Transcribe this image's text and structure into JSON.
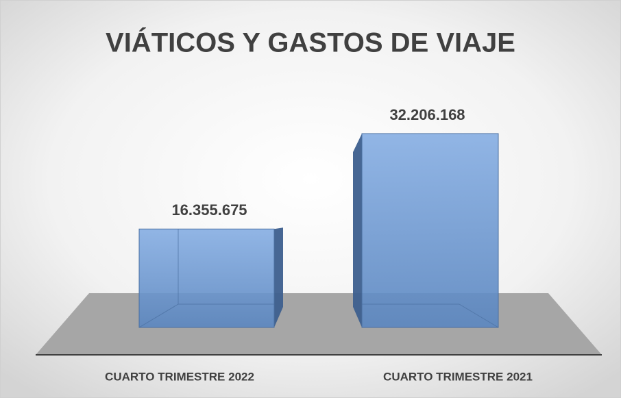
{
  "chart_data": {
    "type": "bar3d",
    "title": "VIÁTICOS Y GASTOS DE VIAJE",
    "categories": [
      "CUARTO TRIMESTRE 2022",
      "CUARTO TRIMESTRE 2021"
    ],
    "values": [
      16355675,
      32206168
    ],
    "value_labels": [
      "16.355.675",
      "32.206.168"
    ],
    "color": "#6f9bd6"
  }
}
